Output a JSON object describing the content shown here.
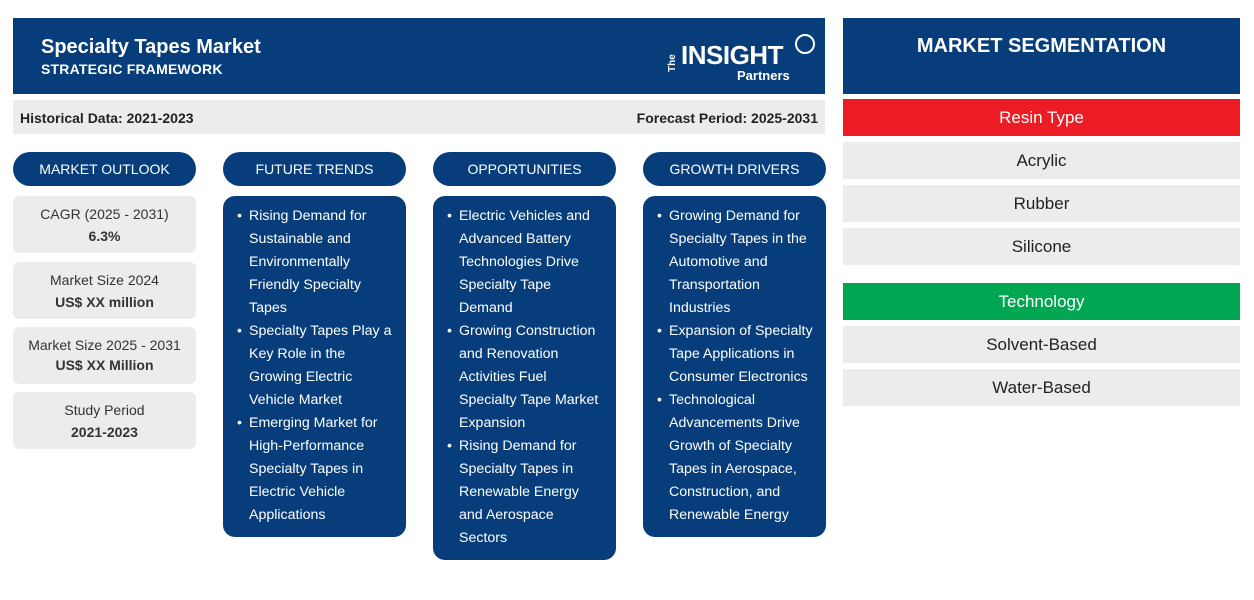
{
  "header": {
    "title": "Specialty Tapes Market",
    "subtitle": "STRATEGIC FRAMEWORK",
    "logo": {
      "the": "The",
      "insight": "INSIGHT",
      "partners": "Partners"
    }
  },
  "periods": {
    "historical": "Historical Data: 2021-2023",
    "forecast": "Forecast Period: 2025-2031"
  },
  "columns": {
    "outlook": "MARKET OUTLOOK",
    "trends": "FUTURE TRENDS",
    "opportunities": "OPPORTUNITIES",
    "drivers": "GROWTH DRIVERS"
  },
  "outlook": [
    {
      "label": "CAGR (2025 - 2031)",
      "value": "6.3%"
    },
    {
      "label": "Market Size 2024",
      "value": "US$ XX million"
    },
    {
      "label": "Market Size 2025 - 2031",
      "value": "US$ XX Million"
    },
    {
      "label": "Study Period",
      "value": "2021-2023"
    }
  ],
  "trends": [
    "Rising Demand for Sustainable and Environmentally Friendly Specialty Tapes",
    "Specialty Tapes Play a Key Role in the Growing Electric Vehicle Market",
    "Emerging Market for High-Performance Specialty Tapes in Electric Vehicle Applications"
  ],
  "opportunities": [
    "Electric Vehicles and Advanced Battery Technologies Drive Specialty Tape Demand",
    "Growing Construction and Renovation Activities Fuel Specialty Tape Market Expansion",
    "Rising Demand for Specialty Tapes in Renewable Energy and Aerospace Sectors"
  ],
  "drivers": [
    "Growing Demand for Specialty Tapes in the Automotive and Transportation Industries",
    "Expansion of Specialty Tape Applications in Consumer Electronics",
    "Technological Advancements Drive Growth of Specialty Tapes in Aerospace, Construction, and Renewable Energy"
  ],
  "segmentation": {
    "title": "MARKET SEGMENTATION",
    "groups": [
      {
        "name": "Resin Type",
        "color": "#ec1c24",
        "items": [
          "Acrylic",
          "Rubber",
          "Silicone"
        ]
      },
      {
        "name": "Technology",
        "color": "#00a651",
        "items": [
          "Solvent-Based",
          "Water-Based"
        ]
      }
    ]
  },
  "colors": {
    "navy": "#063d7a",
    "light_gray": "#ececec"
  }
}
